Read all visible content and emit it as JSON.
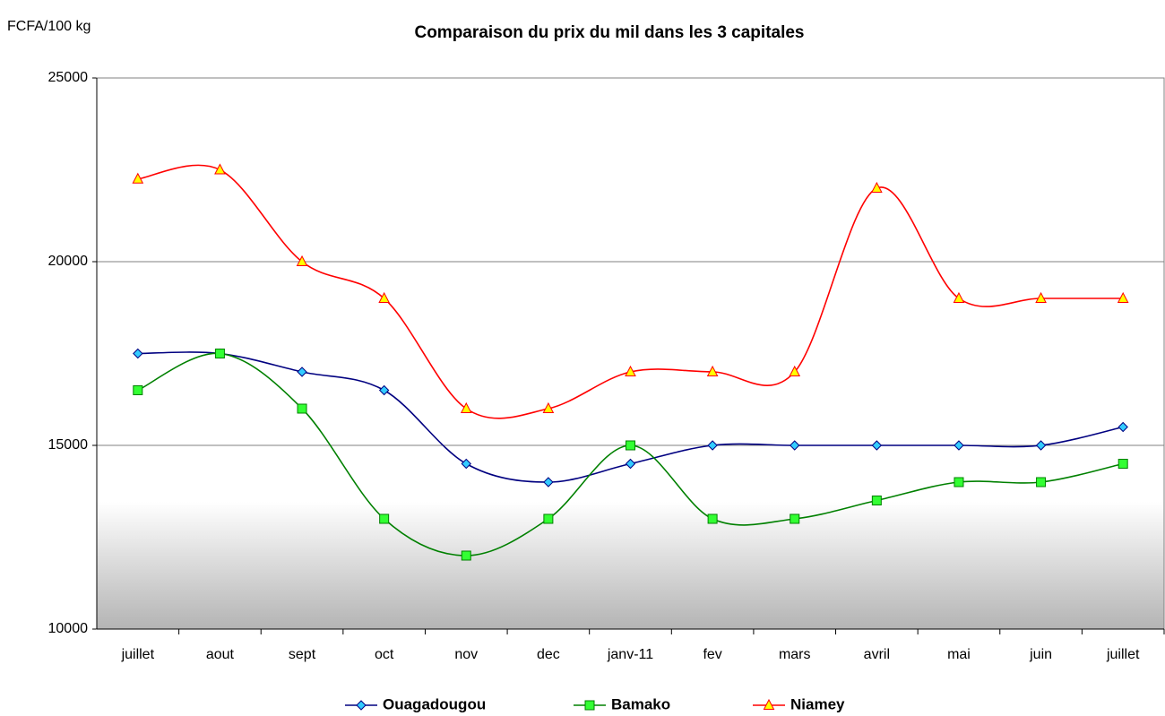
{
  "chart_data": {
    "type": "line",
    "title": "Comparaison du prix du mil dans les 3 capitales",
    "y_label": "FCFA/100 kg",
    "categories": [
      "juillet",
      "aout",
      "sept",
      "oct",
      "nov",
      "dec",
      "janv-11",
      "fev",
      "mars",
      "avril",
      "mai",
      "juin",
      "juillet"
    ],
    "series": [
      {
        "name": "Ouagadougou",
        "color": "#000080",
        "marker": "diamond",
        "marker_color": "#33ccff",
        "values": [
          17500,
          17500,
          17000,
          16500,
          14500,
          14000,
          14500,
          15000,
          15000,
          15000,
          15000,
          15000,
          15500
        ]
      },
      {
        "name": "Bamako",
        "color": "#008000",
        "marker": "square",
        "marker_color": "#33ff33",
        "values": [
          16500,
          17500,
          16000,
          13000,
          12000,
          13000,
          15000,
          13000,
          13000,
          13500,
          14000,
          14000,
          14500
        ]
      },
      {
        "name": "Niamey",
        "color": "#ff0000",
        "marker": "triangle",
        "marker_color": "#ffff00",
        "values": [
          22250,
          22500,
          20000,
          19000,
          16000,
          16000,
          17000,
          17000,
          17000,
          22000,
          19000,
          19000,
          19000
        ]
      }
    ],
    "ylim": [
      10000,
      25000
    ],
    "yticks": [
      10000,
      15000,
      20000,
      25000
    ],
    "grid": true,
    "smooth": true,
    "legend": "bottom"
  }
}
